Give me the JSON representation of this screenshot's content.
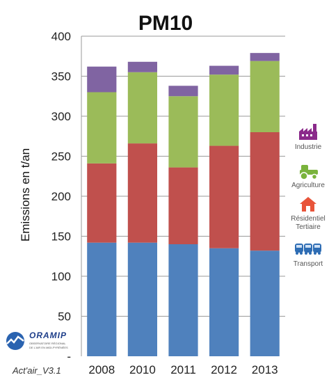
{
  "chart_data": {
    "type": "bar",
    "stacked": true,
    "title": "PM10",
    "ylabel": "Emissions en t/an",
    "xlabel": "",
    "categories": [
      "2008",
      "2010",
      "2011",
      "2012",
      "2013"
    ],
    "ylim": [
      0,
      400
    ],
    "yticks": [
      {
        "value": 0,
        "label": "-"
      },
      {
        "value": 50,
        "label": "50"
      },
      {
        "value": 100,
        "label": "100"
      },
      {
        "value": 150,
        "label": "150"
      },
      {
        "value": 200,
        "label": "200"
      },
      {
        "value": 250,
        "label": "250"
      },
      {
        "value": 300,
        "label": "300"
      },
      {
        "value": 350,
        "label": "350"
      },
      {
        "value": 400,
        "label": "400"
      }
    ],
    "grid": true,
    "legend_position": "right",
    "series": [
      {
        "key": "transport",
        "color": "#4f81bd",
        "values": [
          142,
          142,
          140,
          135,
          132
        ]
      },
      {
        "key": "residentiel",
        "color": "#c0504d",
        "values": [
          99,
          124,
          96,
          128,
          148
        ]
      },
      {
        "key": "agriculture",
        "color": "#9bbb59",
        "values": [
          89,
          89,
          89,
          89,
          89
        ]
      },
      {
        "key": "industrie",
        "color": "#8064a2",
        "values": [
          32,
          13,
          13,
          11,
          10
        ]
      }
    ],
    "legend": [
      {
        "key": "industrie",
        "lines": [
          "Industrie"
        ],
        "icon": "factory-icon",
        "color": "#8b2a8b"
      },
      {
        "key": "agriculture",
        "lines": [
          "Agriculture"
        ],
        "icon": "tractor-icon",
        "color": "#7ab33c"
      },
      {
        "key": "residentiel",
        "lines": [
          "Résidentiel",
          "Tertiaire"
        ],
        "icon": "house-icon",
        "color": "#e8543a"
      },
      {
        "key": "transport",
        "lines": [
          "Transport"
        ],
        "icon": "vehicles-icon",
        "color": "#2e6db4"
      }
    ]
  },
  "logo": {
    "name": "ORAMIP",
    "subtitle": [
      "OBSERVATOIRE RÉGIONAL",
      "DE L'AIR EN MIDI-PYRÉNÉES"
    ]
  },
  "footer": {
    "version": "Act'air_V3.1"
  }
}
